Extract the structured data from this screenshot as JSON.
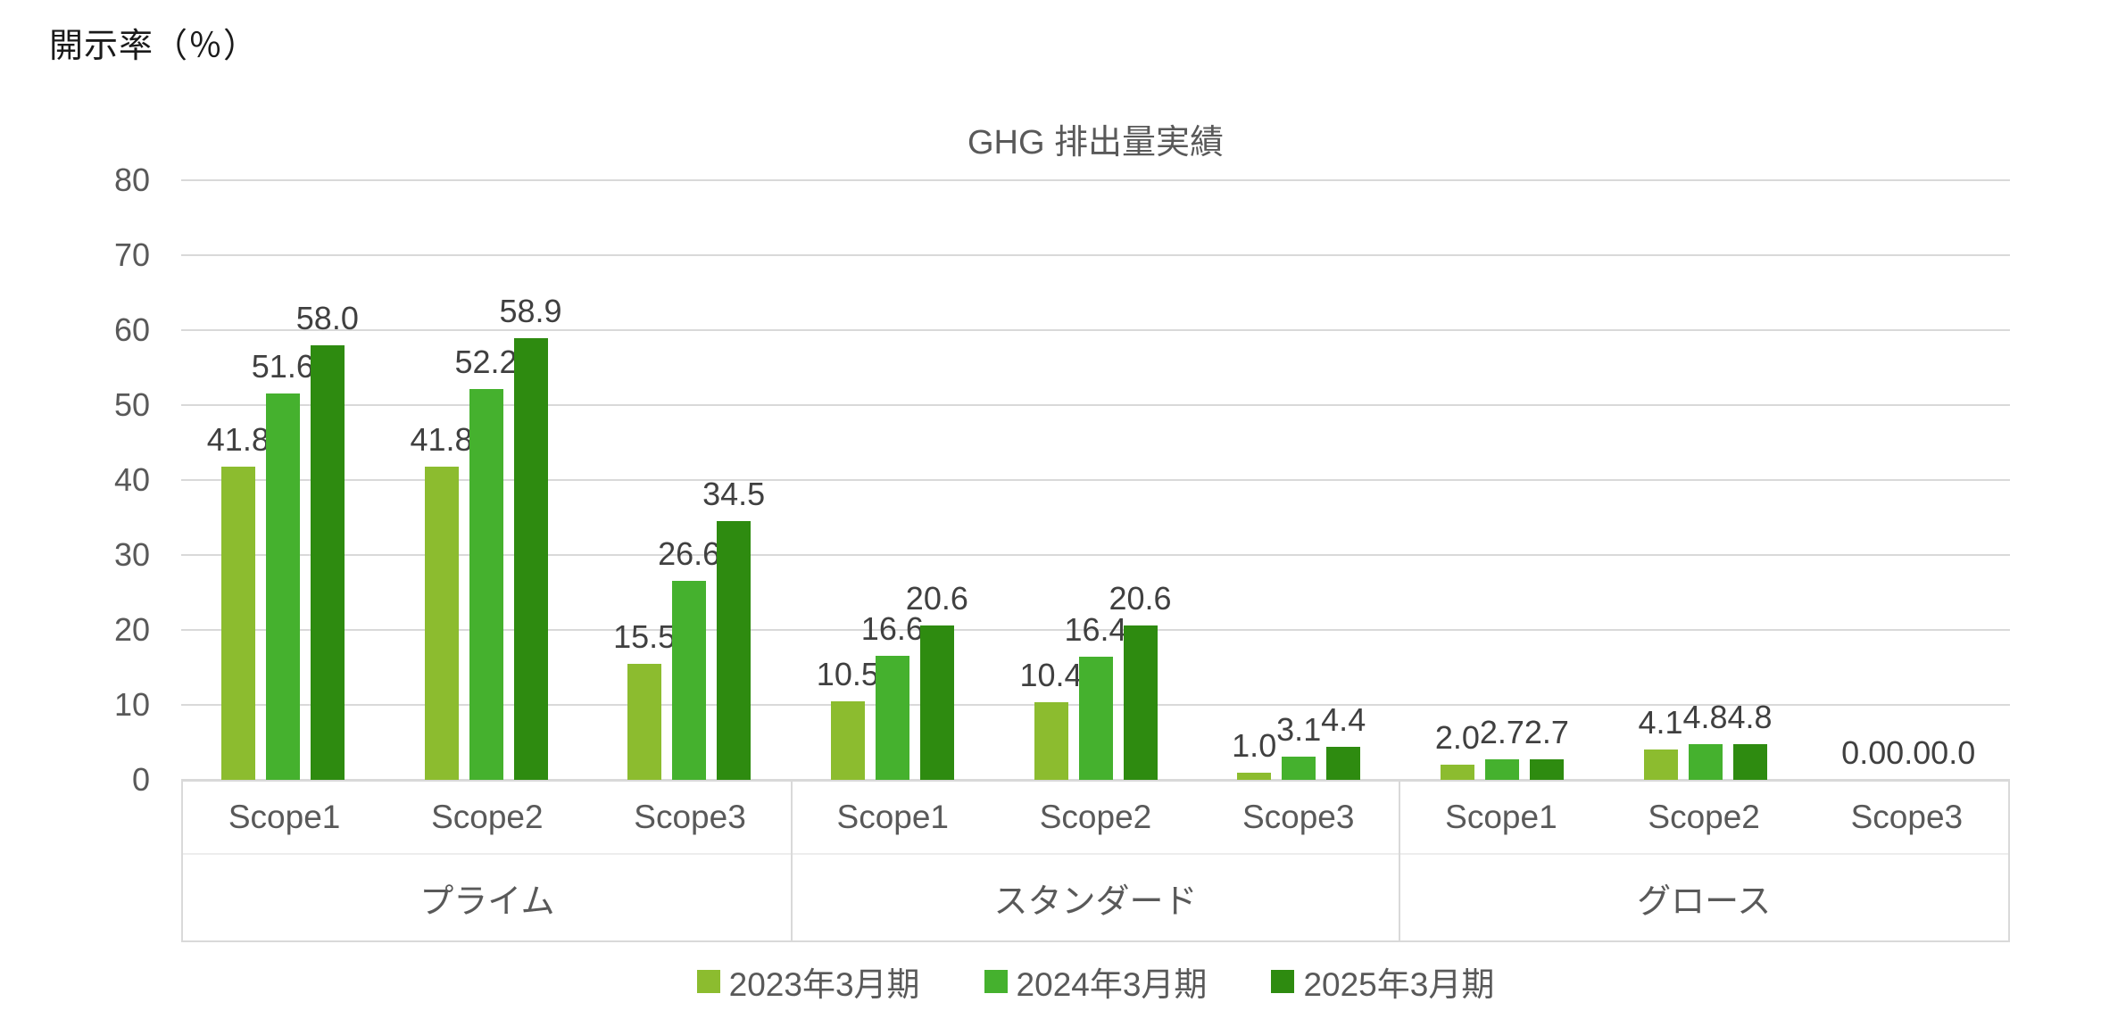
{
  "page": {
    "corner_label": "開示率（％）"
  },
  "chart_data": {
    "type": "bar",
    "title": "GHG 排出量実績",
    "ylabel": "開示率（％）",
    "xlabel": "",
    "ylim": [
      0,
      80
    ],
    "ytick_step": 10,
    "grid": true,
    "legend_position": "bottom",
    "value_labels": true,
    "label_decimals": 1,
    "groups": [
      {
        "label": "プライム",
        "scopes": [
          "Scope1",
          "Scope2",
          "Scope3"
        ]
      },
      {
        "label": "スタンダード",
        "scopes": [
          "Scope1",
          "Scope2",
          "Scope3"
        ]
      },
      {
        "label": "グロース",
        "scopes": [
          "Scope1",
          "Scope2",
          "Scope3"
        ]
      }
    ],
    "categories": [
      "Scope1",
      "Scope2",
      "Scope3",
      "Scope1",
      "Scope2",
      "Scope3",
      "Scope1",
      "Scope2",
      "Scope3"
    ],
    "series": [
      {
        "name": "2023年3月期",
        "color": "#8CBC2F",
        "values": [
          41.8,
          41.8,
          15.5,
          10.5,
          10.4,
          1.0,
          2.0,
          4.1,
          0.0
        ]
      },
      {
        "name": "2024年3月期",
        "color": "#45B12E",
        "values": [
          51.6,
          52.2,
          26.6,
          16.6,
          16.4,
          3.1,
          2.7,
          4.8,
          0.0
        ]
      },
      {
        "name": "2025年3月期",
        "color": "#2E8B10",
        "values": [
          58.0,
          58.9,
          34.5,
          20.6,
          20.6,
          4.4,
          2.7,
          4.8,
          0.0
        ]
      }
    ],
    "colors": {
      "gridline": "#D9D9D9",
      "axis_text": "#595959",
      "data_label": "#404040",
      "title_text": "#595959",
      "background": "#FFFFFF"
    }
  }
}
